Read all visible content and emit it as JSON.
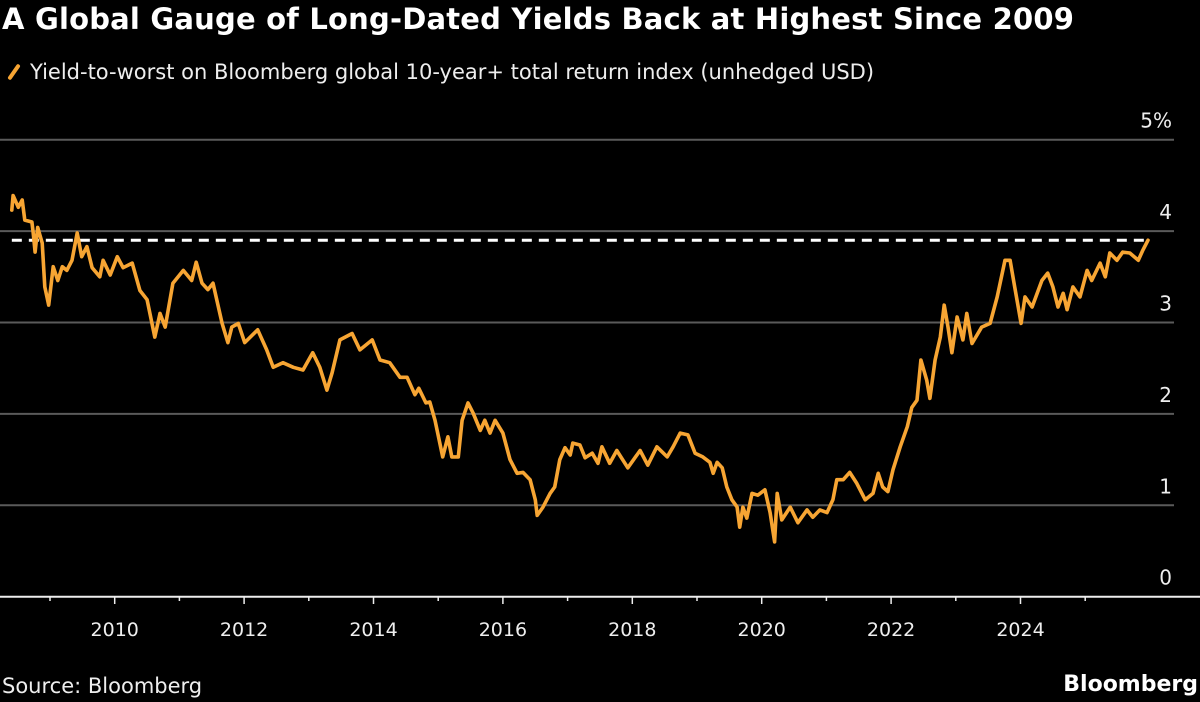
{
  "chart_data": {
    "type": "line",
    "title": "A Global Gauge of Long-Dated Yields Back at Highest Since 2009",
    "legend": "Yield-to-worst on Bloomberg global 10-year+ total return index (unhedged USD)",
    "source": "Source: Bloomberg",
    "brand": "Bloomberg",
    "ylim": [
      0,
      5
    ],
    "xlim": [
      2008.2,
      2026.1
    ],
    "y_ticks": [
      "0",
      "1",
      "2",
      "3",
      "4",
      "5%"
    ],
    "y_tick_values": [
      0,
      1,
      2,
      3,
      4,
      5
    ],
    "x_ticks": [
      "2010",
      "2012",
      "2014",
      "2016",
      "2018",
      "2020",
      "2022",
      "2024"
    ],
    "x_tick_values": [
      2010,
      2012,
      2014,
      2016,
      2018,
      2020,
      2022,
      2024
    ],
    "grid": true,
    "legend_placement": "top-left",
    "y_axis_side": "right",
    "reference_line": {
      "value": 3.9,
      "style": "dashed",
      "color": "#ffffff"
    },
    "series": [
      {
        "color": "#f7a533",
        "x": [
          2008.41,
          2008.43,
          2008.51,
          2008.57,
          2008.61,
          2008.72,
          2008.74,
          2008.77,
          2008.81,
          2008.88,
          2008.92,
          2008.98,
          2009.05,
          2009.12,
          2009.19,
          2009.26,
          2009.34,
          2009.42,
          2009.49,
          2009.57,
          2009.65,
          2009.77,
          2009.82,
          2009.93,
          2010.04,
          2010.13,
          2010.27,
          2010.39,
          2010.5,
          2010.62,
          2010.7,
          2010.78,
          2010.9,
          2011.06,
          2011.19,
          2011.26,
          2011.35,
          2011.44,
          2011.52,
          2011.66,
          2011.75,
          2011.81,
          2011.91,
          2012.01,
          2012.21,
          2012.35,
          2012.45,
          2012.6,
          2012.76,
          2012.91,
          2013.06,
          2013.17,
          2013.28,
          2013.36,
          2013.48,
          2013.67,
          2013.79,
          2013.98,
          2014.1,
          2014.25,
          2014.41,
          2014.52,
          2014.64,
          2014.7,
          2014.81,
          2014.87,
          2014.95,
          2015.07,
          2015.15,
          2015.21,
          2015.31,
          2015.37,
          2015.46,
          2015.54,
          2015.65,
          2015.72,
          2015.8,
          2015.88,
          2016.0,
          2016.11,
          2016.22,
          2016.31,
          2016.42,
          2016.5,
          2016.53,
          2016.62,
          2016.73,
          2016.8,
          2016.88,
          2016.96,
          2017.04,
          2017.08,
          2017.19,
          2017.27,
          2017.38,
          2017.47,
          2017.53,
          2017.65,
          2017.76,
          2017.93,
          2018.12,
          2018.24,
          2018.38,
          2018.54,
          2018.63,
          2018.74,
          2018.86,
          2018.97,
          2019.09,
          2019.2,
          2019.25,
          2019.31,
          2019.39,
          2019.46,
          2019.54,
          2019.62,
          2019.66,
          2019.71,
          2019.77,
          2019.85,
          2019.94,
          2020.05,
          2020.13,
          2020.2,
          2020.24,
          2020.31,
          2020.44,
          2020.56,
          2020.7,
          2020.79,
          2020.9,
          2021.01,
          2021.1,
          2021.16,
          2021.26,
          2021.36,
          2021.47,
          2021.6,
          2021.72,
          2021.8,
          2021.87,
          2021.95,
          2022.03,
          2022.14,
          2022.25,
          2022.32,
          2022.4,
          2022.46,
          2022.55,
          2022.6,
          2022.68,
          2022.76,
          2022.82,
          2022.88,
          2022.94,
          2023.02,
          2023.11,
          2023.17,
          2023.25,
          2023.4,
          2023.53,
          2023.64,
          2023.76,
          2023.84,
          2023.91,
          2024.01,
          2024.07,
          2024.18,
          2024.33,
          2024.42,
          2024.5,
          2024.58,
          2024.66,
          2024.72,
          2024.81,
          2024.92,
          2025.03,
          2025.1,
          2025.23,
          2025.31,
          2025.38,
          2025.49,
          2025.58,
          2025.69,
          2025.82,
          2025.89,
          2025.97
        ],
        "y": [
          4.23,
          4.39,
          4.26,
          4.34,
          4.12,
          4.1,
          3.98,
          3.77,
          4.04,
          3.87,
          3.39,
          3.19,
          3.61,
          3.46,
          3.61,
          3.57,
          3.68,
          3.98,
          3.72,
          3.83,
          3.6,
          3.5,
          3.68,
          3.52,
          3.72,
          3.6,
          3.65,
          3.35,
          3.25,
          2.84,
          3.1,
          2.95,
          3.43,
          3.57,
          3.46,
          3.66,
          3.43,
          3.36,
          3.43,
          2.99,
          2.78,
          2.95,
          2.99,
          2.78,
          2.92,
          2.7,
          2.51,
          2.56,
          2.51,
          2.48,
          2.67,
          2.51,
          2.26,
          2.45,
          2.81,
          2.88,
          2.7,
          2.81,
          2.59,
          2.56,
          2.4,
          2.4,
          2.21,
          2.28,
          2.12,
          2.13,
          1.93,
          1.53,
          1.75,
          1.53,
          1.53,
          1.93,
          2.12,
          2.01,
          1.82,
          1.93,
          1.79,
          1.93,
          1.79,
          1.5,
          1.35,
          1.36,
          1.28,
          1.06,
          0.89,
          0.98,
          1.13,
          1.2,
          1.5,
          1.63,
          1.55,
          1.68,
          1.66,
          1.52,
          1.57,
          1.46,
          1.64,
          1.46,
          1.6,
          1.41,
          1.6,
          1.44,
          1.64,
          1.53,
          1.64,
          1.79,
          1.77,
          1.57,
          1.53,
          1.47,
          1.35,
          1.47,
          1.41,
          1.2,
          1.06,
          0.98,
          0.76,
          0.98,
          0.86,
          1.13,
          1.11,
          1.17,
          0.92,
          0.6,
          1.13,
          0.84,
          0.98,
          0.81,
          0.95,
          0.87,
          0.95,
          0.92,
          1.06,
          1.28,
          1.28,
          1.36,
          1.24,
          1.06,
          1.13,
          1.35,
          1.2,
          1.15,
          1.39,
          1.64,
          1.86,
          2.07,
          2.15,
          2.59,
          2.37,
          2.17,
          2.59,
          2.84,
          3.19,
          2.95,
          2.67,
          3.06,
          2.81,
          3.1,
          2.77,
          2.95,
          2.99,
          3.28,
          3.68,
          3.68,
          3.39,
          2.99,
          3.28,
          3.17,
          3.46,
          3.54,
          3.39,
          3.17,
          3.32,
          3.14,
          3.39,
          3.28,
          3.57,
          3.46,
          3.65,
          3.5,
          3.76,
          3.68,
          3.77,
          3.76,
          3.68,
          3.79,
          3.9
        ]
      }
    ]
  }
}
